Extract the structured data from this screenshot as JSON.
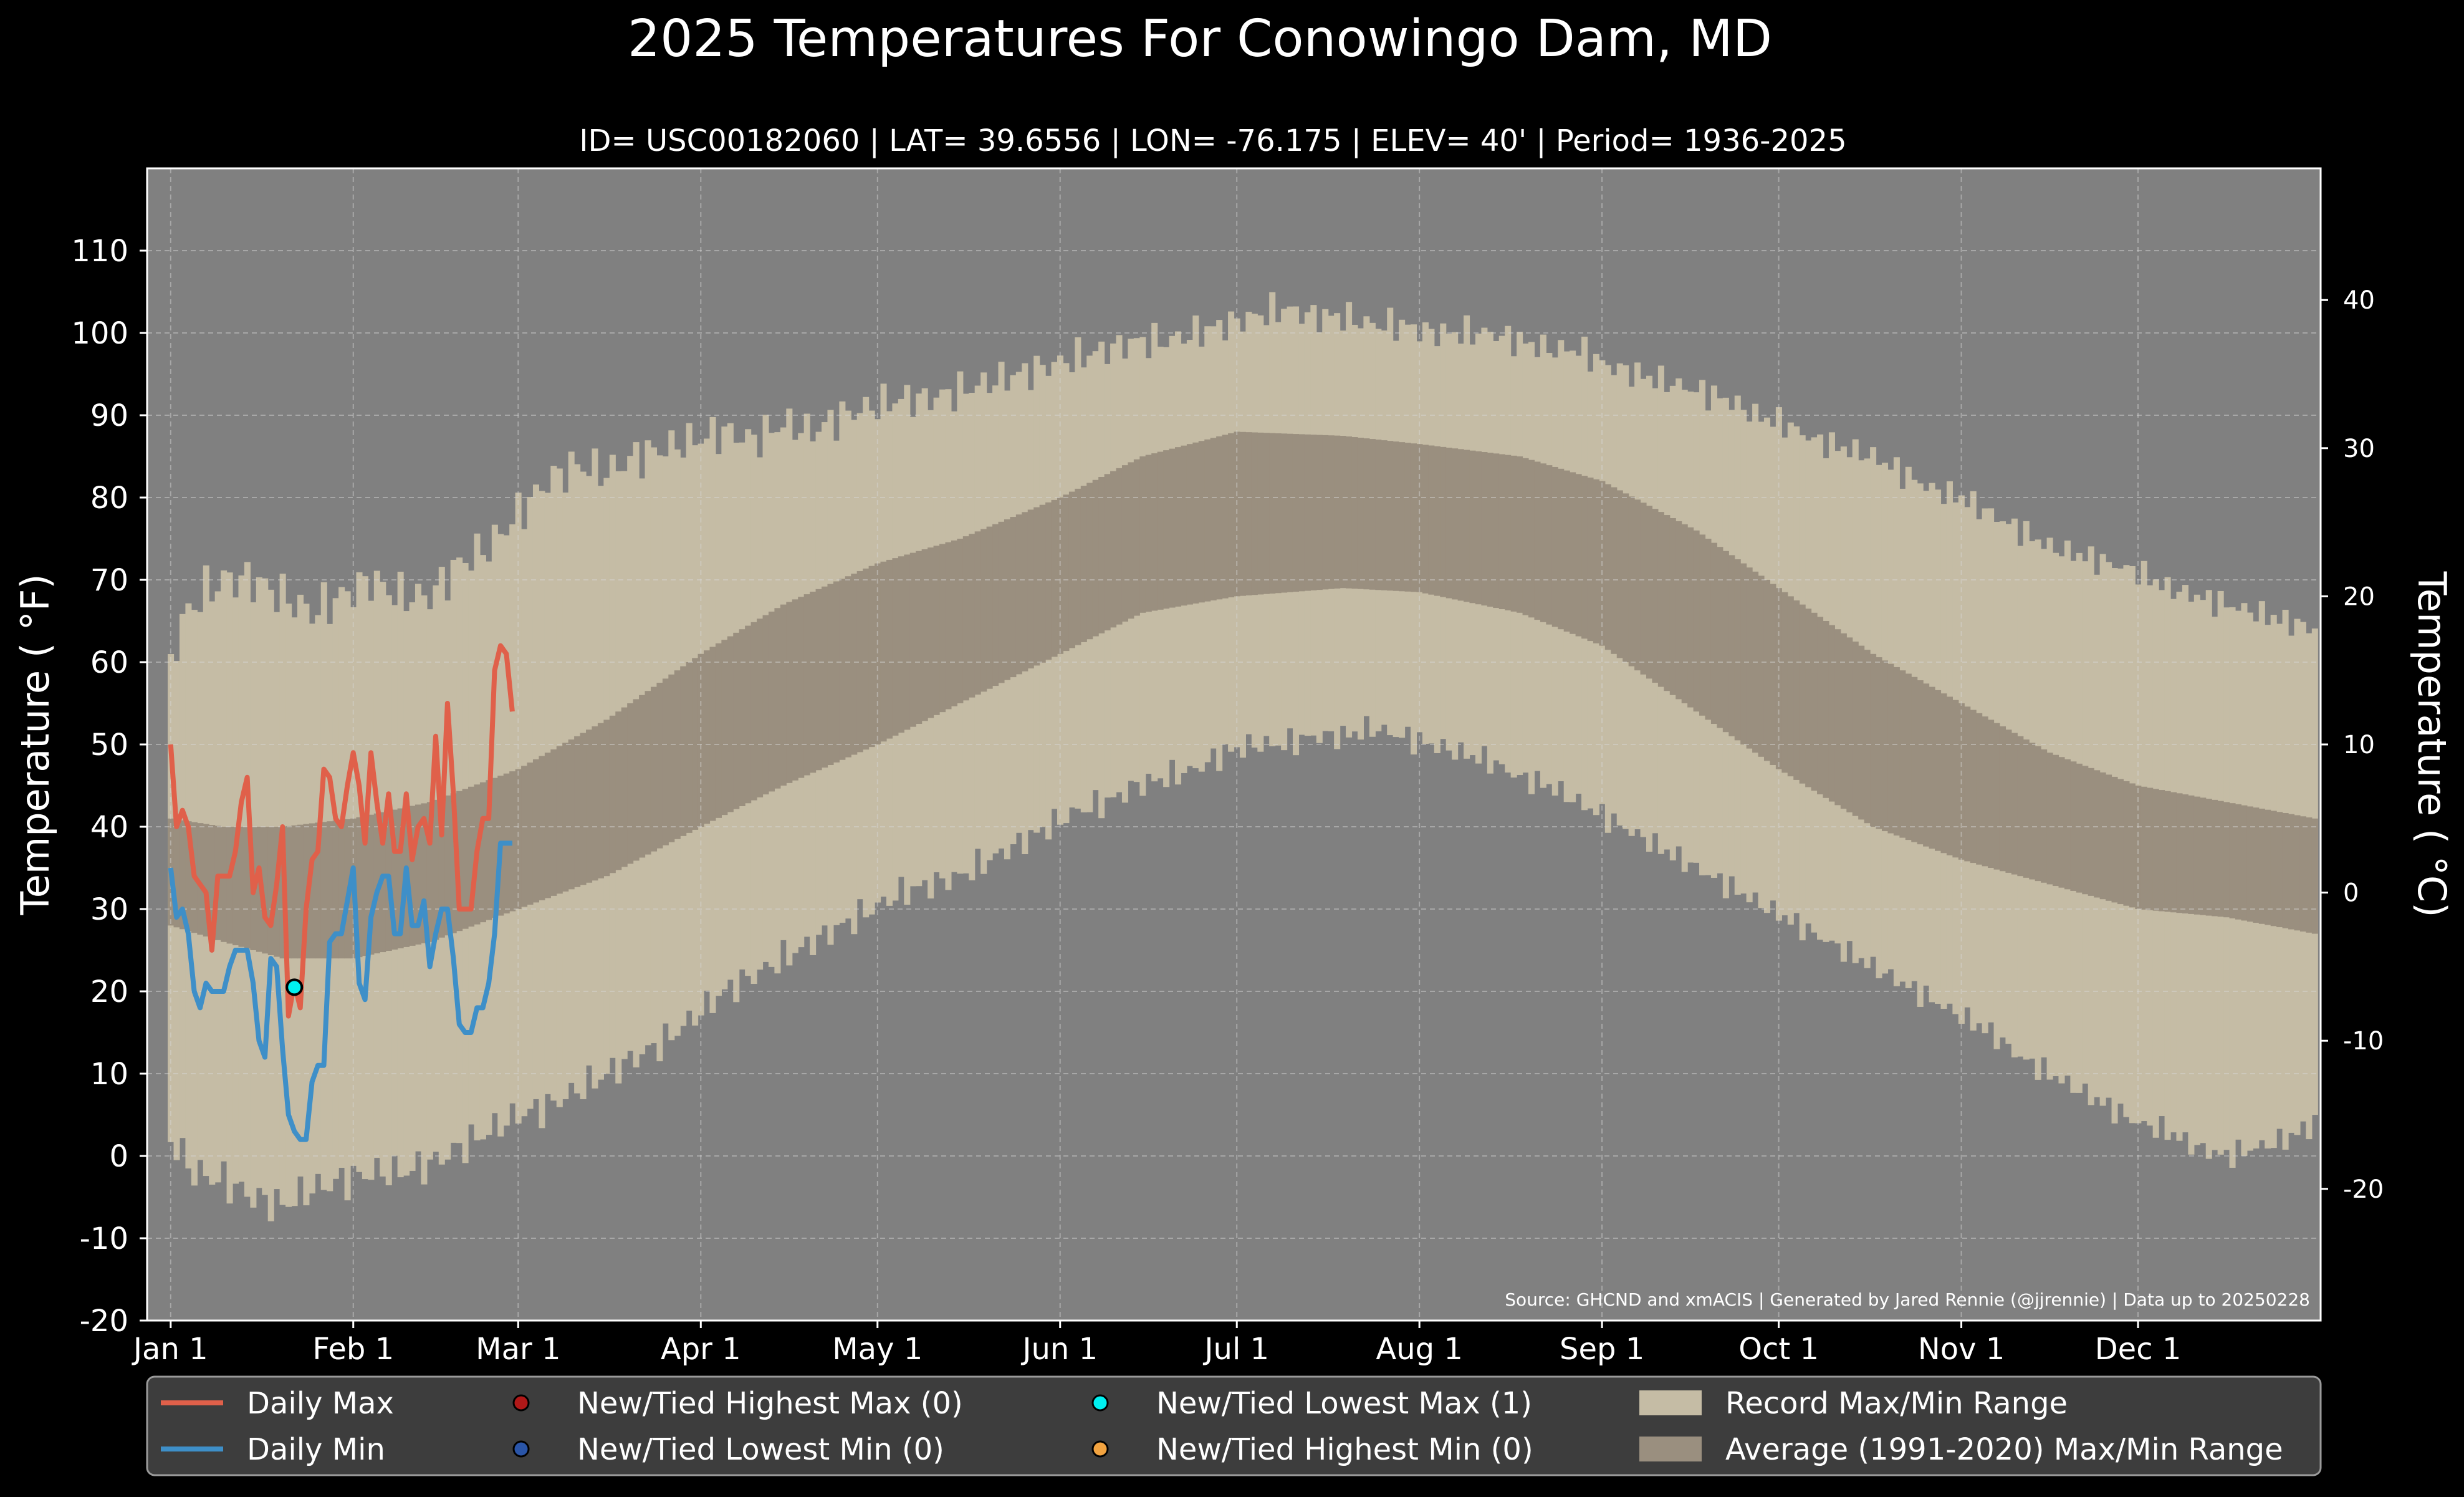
{
  "chart_data": {
    "type": "area",
    "title": "2025 Temperatures For Conowingo Dam, MD",
    "subtitle": "ID= USC00182060 | LAT= 39.6556 | LON= -76.175 | ELEV= 40' | Period= 1936-2025",
    "ylabel_left": "Temperature ( $^\\circ$F)",
    "ylabel_left_display": "Temperature ( °F)",
    "ylabel_right_display": "Temperature ( °C)",
    "source": "Source: GHCND and xmACIS | Generated by Jared Rennie (@jjrennie) | Data up to 20250228",
    "ylim_f": [
      -20,
      120
    ],
    "yticks_f": [
      -20,
      -10,
      0,
      10,
      20,
      30,
      40,
      50,
      60,
      70,
      80,
      90,
      100,
      110
    ],
    "yticks_c": [
      -20,
      -10,
      0,
      10,
      20,
      30,
      40
    ],
    "xlim_day": [
      -3,
      366
    ],
    "x_ticks": [
      {
        "label": "Jan 1",
        "day": 1
      },
      {
        "label": "Feb 1",
        "day": 32
      },
      {
        "label": "Mar 1",
        "day": 60
      },
      {
        "label": "Apr 1",
        "day": 91
      },
      {
        "label": "May 1",
        "day": 121
      },
      {
        "label": "Jun 1",
        "day": 152
      },
      {
        "label": "Jul 1",
        "day": 182
      },
      {
        "label": "Aug 1",
        "day": 213
      },
      {
        "label": "Sep 1",
        "day": 244
      },
      {
        "label": "Oct 1",
        "day": 274
      },
      {
        "label": "Nov 1",
        "day": 305
      },
      {
        "label": "Dec 1",
        "day": 335
      }
    ],
    "record_max_anchors": [
      [
        1,
        60
      ],
      [
        3,
        65
      ],
      [
        6,
        68
      ],
      [
        10,
        70
      ],
      [
        15,
        70
      ],
      [
        20,
        68
      ],
      [
        25,
        66
      ],
      [
        30,
        68
      ],
      [
        35,
        70
      ],
      [
        40,
        68
      ],
      [
        45,
        68
      ],
      [
        50,
        72
      ],
      [
        55,
        74
      ],
      [
        60,
        78
      ],
      [
        65,
        82
      ],
      [
        70,
        84
      ],
      [
        75,
        83
      ],
      [
        80,
        85
      ],
      [
        85,
        86
      ],
      [
        90,
        87
      ],
      [
        95,
        88
      ],
      [
        100,
        87
      ],
      [
        105,
        89
      ],
      [
        110,
        88
      ],
      [
        115,
        90
      ],
      [
        120,
        91
      ],
      [
        125,
        92
      ],
      [
        130,
        92
      ],
      [
        135,
        93
      ],
      [
        140,
        94
      ],
      [
        145,
        95
      ],
      [
        150,
        96
      ],
      [
        155,
        97
      ],
      [
        160,
        98
      ],
      [
        165,
        99
      ],
      [
        170,
        99
      ],
      [
        175,
        100
      ],
      [
        180,
        101
      ],
      [
        185,
        102
      ],
      [
        190,
        103
      ],
      [
        195,
        102
      ],
      [
        200,
        102
      ],
      [
        205,
        101
      ],
      [
        210,
        101
      ],
      [
        215,
        100
      ],
      [
        220,
        100
      ],
      [
        225,
        100
      ],
      [
        230,
        99
      ],
      [
        235,
        98
      ],
      [
        240,
        98
      ],
      [
        245,
        96
      ],
      [
        250,
        95
      ],
      [
        255,
        94
      ],
      [
        260,
        93
      ],
      [
        265,
        92
      ],
      [
        270,
        90
      ],
      [
        275,
        89
      ],
      [
        280,
        87
      ],
      [
        285,
        86
      ],
      [
        290,
        85
      ],
      [
        295,
        83
      ],
      [
        300,
        81
      ],
      [
        305,
        80
      ],
      [
        310,
        78
      ],
      [
        315,
        76
      ],
      [
        320,
        74
      ],
      [
        325,
        73
      ],
      [
        330,
        72
      ],
      [
        335,
        71
      ],
      [
        340,
        69
      ],
      [
        345,
        68
      ],
      [
        350,
        67
      ],
      [
        355,
        66
      ],
      [
        360,
        65
      ],
      [
        365,
        64
      ]
    ],
    "record_min_anchors": [
      [
        1,
        2
      ],
      [
        5,
        -2
      ],
      [
        10,
        -3
      ],
      [
        15,
        -5
      ],
      [
        20,
        -6
      ],
      [
        25,
        -4
      ],
      [
        30,
        -3
      ],
      [
        35,
        -2
      ],
      [
        40,
        -2
      ],
      [
        45,
        -1
      ],
      [
        50,
        1
      ],
      [
        55,
        3
      ],
      [
        60,
        5
      ],
      [
        65,
        6
      ],
      [
        70,
        8
      ],
      [
        75,
        10
      ],
      [
        80,
        12
      ],
      [
        85,
        14
      ],
      [
        90,
        17
      ],
      [
        95,
        20
      ],
      [
        100,
        22
      ],
      [
        105,
        24
      ],
      [
        110,
        26
      ],
      [
        115,
        28
      ],
      [
        120,
        30
      ],
      [
        125,
        32
      ],
      [
        130,
        33
      ],
      [
        135,
        34
      ],
      [
        140,
        36
      ],
      [
        145,
        38
      ],
      [
        150,
        40
      ],
      [
        155,
        42
      ],
      [
        160,
        43
      ],
      [
        165,
        45
      ],
      [
        170,
        46
      ],
      [
        175,
        47
      ],
      [
        180,
        49
      ],
      [
        185,
        50
      ],
      [
        190,
        50
      ],
      [
        195,
        51
      ],
      [
        200,
        51
      ],
      [
        205,
        52
      ],
      [
        210,
        51
      ],
      [
        215,
        50
      ],
      [
        220,
        49
      ],
      [
        225,
        48
      ],
      [
        230,
        46
      ],
      [
        235,
        45
      ],
      [
        240,
        43
      ],
      [
        245,
        41
      ],
      [
        250,
        39
      ],
      [
        255,
        37
      ],
      [
        260,
        35
      ],
      [
        265,
        33
      ],
      [
        270,
        31
      ],
      [
        275,
        29
      ],
      [
        280,
        27
      ],
      [
        285,
        25
      ],
      [
        290,
        23
      ],
      [
        295,
        21
      ],
      [
        300,
        19
      ],
      [
        305,
        17
      ],
      [
        310,
        15
      ],
      [
        315,
        12
      ],
      [
        320,
        10
      ],
      [
        325,
        8
      ],
      [
        330,
        6
      ],
      [
        335,
        4
      ],
      [
        340,
        3
      ],
      [
        345,
        1
      ],
      [
        350,
        0
      ],
      [
        355,
        1
      ],
      [
        360,
        2
      ],
      [
        365,
        4
      ]
    ],
    "avg_max_anchors": [
      [
        1,
        41
      ],
      [
        10,
        40
      ],
      [
        20,
        40
      ],
      [
        32,
        41
      ],
      [
        45,
        43
      ],
      [
        60,
        47
      ],
      [
        75,
        53
      ],
      [
        91,
        61
      ],
      [
        105,
        67
      ],
      [
        121,
        72
      ],
      [
        135,
        75
      ],
      [
        152,
        80
      ],
      [
        166,
        85
      ],
      [
        182,
        88
      ],
      [
        200,
        87.5
      ],
      [
        213,
        86.5
      ],
      [
        230,
        85
      ],
      [
        244,
        82
      ],
      [
        260,
        76
      ],
      [
        274,
        69
      ],
      [
        290,
        61
      ],
      [
        305,
        55
      ],
      [
        320,
        49
      ],
      [
        335,
        45
      ],
      [
        350,
        43
      ],
      [
        365,
        41
      ]
    ],
    "avg_min_anchors": [
      [
        1,
        28
      ],
      [
        10,
        26
      ],
      [
        20,
        24
      ],
      [
        32,
        24
      ],
      [
        45,
        26
      ],
      [
        60,
        30
      ],
      [
        75,
        34
      ],
      [
        91,
        40
      ],
      [
        105,
        45
      ],
      [
        121,
        50
      ],
      [
        135,
        55
      ],
      [
        152,
        61
      ],
      [
        166,
        66
      ],
      [
        182,
        68
      ],
      [
        200,
        69
      ],
      [
        213,
        68.5
      ],
      [
        230,
        66
      ],
      [
        244,
        62
      ],
      [
        260,
        54
      ],
      [
        274,
        47
      ],
      [
        290,
        40
      ],
      [
        305,
        36
      ],
      [
        320,
        33
      ],
      [
        335,
        30
      ],
      [
        350,
        29
      ],
      [
        365,
        27
      ]
    ],
    "series": [
      {
        "name": "Daily Max",
        "color": "#e0604a",
        "values": [
          50,
          40,
          42,
          40,
          34,
          33,
          32,
          25,
          34,
          34,
          34,
          37,
          43,
          46,
          32,
          35,
          29,
          28,
          33,
          40,
          17,
          21,
          18,
          30,
          36,
          37,
          47,
          46,
          41,
          40,
          45,
          49,
          45,
          38,
          49,
          43,
          38,
          44,
          37,
          37,
          44,
          36,
          40,
          41,
          38,
          51,
          39,
          55,
          44,
          30,
          30,
          30,
          37,
          41,
          41,
          59,
          62,
          61,
          54
        ]
      },
      {
        "name": "Daily Min",
        "color": "#3e8fc8",
        "values": [
          35,
          29,
          30,
          27,
          20,
          18,
          21,
          20,
          20,
          20,
          23,
          25,
          25,
          25,
          21,
          14,
          12,
          24,
          23,
          13,
          5,
          3,
          2,
          2,
          9,
          11,
          11,
          26,
          27,
          27,
          31,
          35,
          21,
          19,
          29,
          32,
          34,
          34,
          27,
          27,
          35,
          28,
          28,
          31,
          23,
          27,
          30,
          30,
          24,
          16,
          15,
          15,
          18,
          18,
          21,
          27,
          38,
          38,
          38
        ]
      }
    ],
    "highlight_point": {
      "day": 22,
      "value": 20.5,
      "label": "New/Tied Lowest Max (1)"
    },
    "legend": {
      "placement": "bottom",
      "items": [
        {
          "label": "Daily Max",
          "kind": "line",
          "color": "#e0604a"
        },
        {
          "label": "Daily Min",
          "kind": "line",
          "color": "#3e8fc8"
        },
        {
          "label": "New/Tied Highest Max (0)",
          "kind": "dot",
          "color": "#b01818"
        },
        {
          "label": "New/Tied Lowest Min (0)",
          "kind": "dot",
          "color": "#2a55a8"
        },
        {
          "label": "New/Tied Lowest Max (1)",
          "kind": "dot",
          "color": "#00f0f0"
        },
        {
          "label": "New/Tied Highest Min (0)",
          "kind": "dot",
          "color": "#f2a340"
        },
        {
          "label": "Record Max/Min Range",
          "kind": "patch",
          "color": "#c5bca5"
        },
        {
          "label": "Average (1991-2020) Max/Min Range",
          "kind": "patch",
          "color": "#9a8f7f"
        }
      ]
    },
    "colors": {
      "background": "#000000",
      "plot_background": "#808080",
      "record_range": "#c5bca5",
      "average_range": "#9a8f7f",
      "text": "#ffffff"
    },
    "grid": true
  }
}
